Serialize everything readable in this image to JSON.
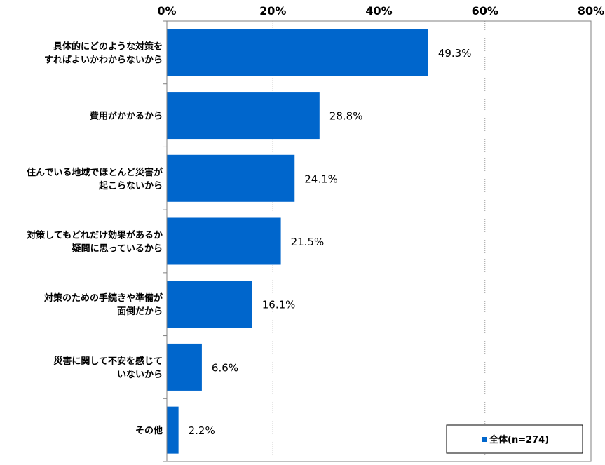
{
  "chart_data": {
    "type": "bar",
    "orientation": "horizontal",
    "categories": [
      [
        "具体的にどのような対策を",
        "すればよいかわからないから"
      ],
      [
        "費用がかかるから"
      ],
      [
        "住んでいる地域でほとんど災害が",
        "起こらないから"
      ],
      [
        "対策してもどれだけ効果があるか",
        "疑問に思っているから"
      ],
      [
        "対策のための手続きや準備が",
        "面倒だから"
      ],
      [
        "災害に関して不安を感じて",
        "いないから"
      ],
      [
        "その他"
      ]
    ],
    "series": [
      {
        "name": "全体(n=274)",
        "values": [
          49.3,
          28.8,
          24.1,
          21.5,
          16.1,
          6.6,
          2.2
        ],
        "color": "#0066cc"
      }
    ],
    "data_labels": [
      "49.3%",
      "28.8%",
      "24.1%",
      "21.5%",
      "16.1%",
      "6.6%",
      "2.2%"
    ],
    "xlim": [
      0,
      80
    ],
    "x_ticks": [
      0,
      20,
      40,
      60,
      80
    ],
    "x_tick_labels": [
      "0%",
      "20%",
      "40%",
      "60%",
      "80%"
    ],
    "grid": "vertical-dotted",
    "axis_position": "top",
    "legend_position": "bottom-right",
    "title": "",
    "xlabel": "",
    "ylabel": ""
  }
}
